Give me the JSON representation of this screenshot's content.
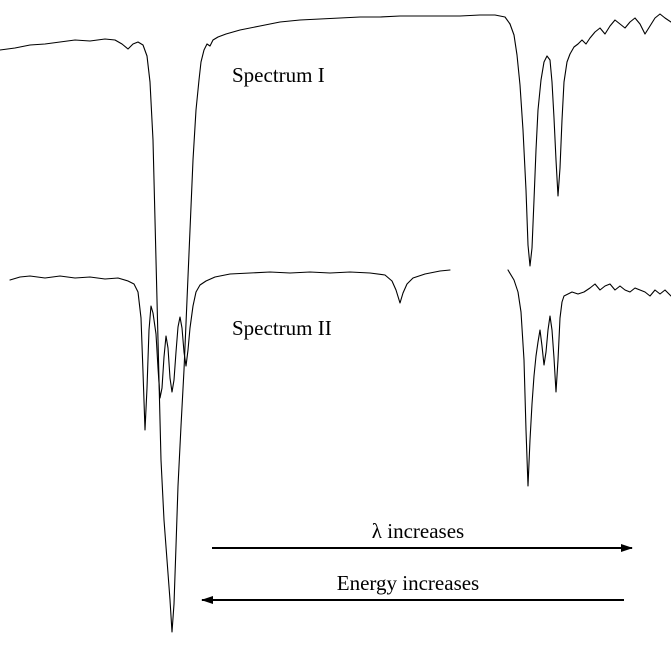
{
  "spectra": [
    {
      "label": "Spectrum I"
    },
    {
      "label": "Spectrum II"
    }
  ],
  "arrows": {
    "wavelength": {
      "label": "λ increases",
      "direction": "right"
    },
    "energy": {
      "label": "Energy increases",
      "direction": "left"
    }
  },
  "colors": {
    "trace": "#000000",
    "background": "#ffffff"
  }
}
